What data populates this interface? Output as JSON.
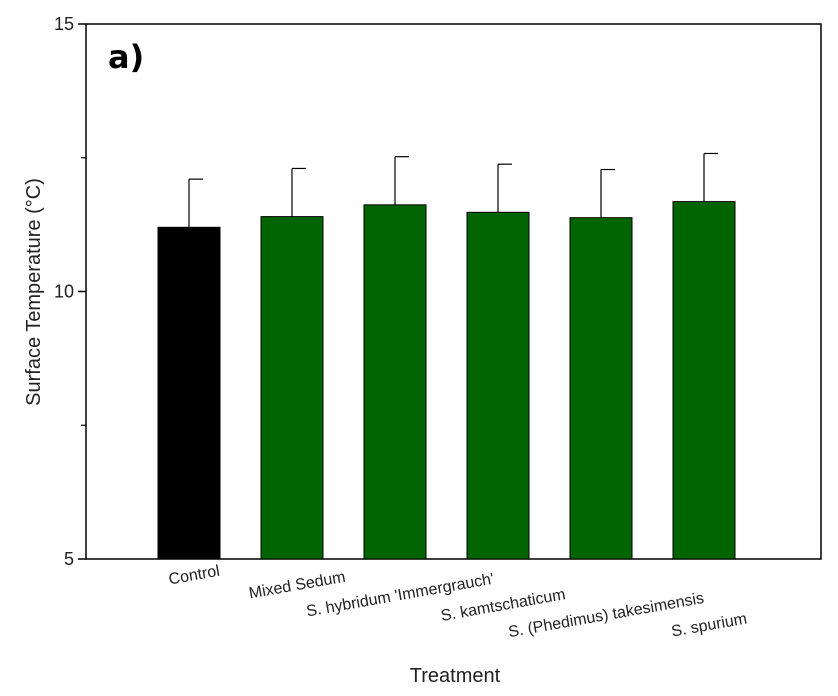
{
  "chart_data": {
    "type": "bar",
    "panel_label": "a)",
    "xlabel": "Treatment",
    "ylabel": "Surface Temperature (°C)",
    "ylim": [
      5,
      15
    ],
    "yticks": [
      5,
      10,
      15
    ],
    "grid": false,
    "categories": [
      "Control",
      "Mixed Sedum",
      "S. hybridum 'Immergrauch'",
      "S. kamtschaticum",
      "S. (Phedimus) takesimensis",
      "S. spurium"
    ],
    "values": [
      11.2,
      11.4,
      11.62,
      11.48,
      11.38,
      11.68
    ],
    "error_upper": [
      0.9,
      0.9,
      0.9,
      0.9,
      0.9,
      0.9
    ],
    "colors": [
      "#000000",
      "#006400",
      "#006400",
      "#006400",
      "#006400",
      "#006400"
    ]
  }
}
